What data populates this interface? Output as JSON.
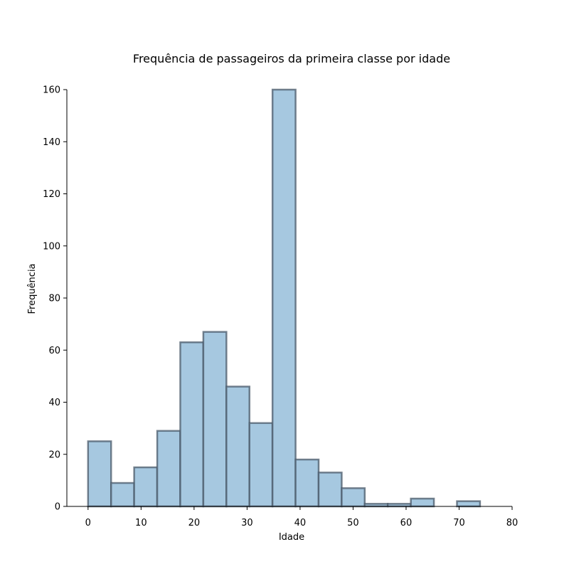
{
  "chart_data": {
    "type": "bar",
    "title": "Frequência de passageiros da primeira classe por idade",
    "xlabel": "Idade",
    "ylabel": "Frequência",
    "xlim": [
      -4,
      80
    ],
    "ylim": [
      0,
      160
    ],
    "xticks": [
      0,
      10,
      20,
      30,
      40,
      50,
      60,
      70,
      80
    ],
    "yticks": [
      0,
      20,
      40,
      60,
      80,
      100,
      120,
      140,
      160
    ],
    "bin_edges": [
      0,
      4.35,
      8.7,
      13.05,
      17.4,
      21.75,
      26.1,
      30.45,
      34.8,
      39.15,
      43.5,
      47.85,
      52.2,
      56.55,
      60.9,
      65.25,
      69.6,
      73.95
    ],
    "values": [
      25,
      9,
      15,
      29,
      63,
      67,
      46,
      32,
      160,
      18,
      13,
      7,
      1,
      1,
      3,
      0,
      2
    ],
    "bar_fill": "#a6c8e0",
    "bar_edge": "#4a5a69",
    "grid": false,
    "legend": "none"
  }
}
